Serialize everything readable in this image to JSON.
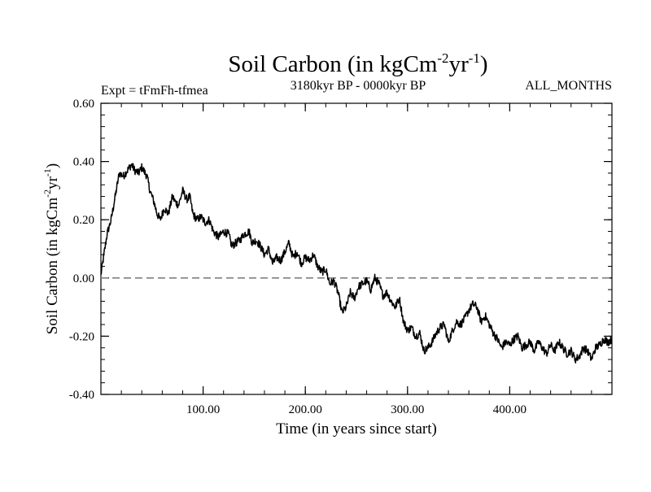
{
  "chart_data": {
    "type": "line",
    "title": "Soil Carbon (in kgCm",
    "title_sup1": "-2",
    "title_mid": "yr",
    "title_sup2": "-1",
    "title_end": ")",
    "subtitle_left": "Expt = tFmFh-tfmea",
    "subtitle_center": "3180kyr BP - 0000kyr BP",
    "subtitle_right": "ALL_MONTHS",
    "xlabel": "Time (in years since start)",
    "ylabel": "Soil Carbon (in kgCm",
    "ylabel_sup1": "-2",
    "ylabel_mid": "yr",
    "ylabel_sup2": "-1",
    "ylabel_end": ")",
    "xlim": [
      0,
      500
    ],
    "ylim": [
      -0.4,
      0.6
    ],
    "xticks": [
      100,
      200,
      300,
      400
    ],
    "xtick_labels": [
      "100.00",
      "200.00",
      "300.00",
      "400.00"
    ],
    "yticks": [
      0.6,
      0.4,
      0.2,
      0.0,
      -0.2,
      -0.4
    ],
    "ytick_labels": [
      "0.60",
      "0.40",
      "0.20",
      "0.00",
      "-0.20",
      "-0.40"
    ],
    "reference_line": {
      "y": 0.0,
      "style": "dashed",
      "color": "#808080"
    },
    "line_color": "#000000",
    "series": [
      {
        "name": "Soil Carbon",
        "x": [
          0,
          3,
          6,
          10,
          15,
          18,
          22,
          26,
          30,
          33,
          37,
          40,
          45,
          48,
          52,
          55,
          58,
          62,
          66,
          70,
          73,
          76,
          80,
          84,
          87,
          90,
          94,
          98,
          102,
          106,
          110,
          115,
          120,
          125,
          128,
          132,
          136,
          140,
          145,
          148,
          152,
          156,
          160,
          164,
          168,
          172,
          176,
          180,
          184,
          188,
          192,
          196,
          200,
          204,
          208,
          212,
          216,
          220,
          224,
          228,
          232,
          236,
          240,
          244,
          248,
          252,
          256,
          260,
          264,
          268,
          272,
          276,
          280,
          284,
          288,
          292,
          296,
          300,
          304,
          308,
          312,
          316,
          320,
          324,
          328,
          332,
          336,
          340,
          344,
          348,
          352,
          356,
          360,
          364,
          368,
          372,
          376,
          380,
          384,
          388,
          392,
          396,
          400,
          404,
          408,
          412,
          416,
          420,
          424,
          428,
          432,
          436,
          440,
          444,
          448,
          452,
          456,
          460,
          464,
          468,
          472,
          476,
          480,
          484,
          488,
          492,
          496,
          500
        ],
        "y": [
          0.01,
          0.08,
          0.15,
          0.2,
          0.3,
          0.36,
          0.35,
          0.37,
          0.39,
          0.37,
          0.36,
          0.38,
          0.35,
          0.3,
          0.26,
          0.22,
          0.2,
          0.24,
          0.22,
          0.28,
          0.26,
          0.25,
          0.3,
          0.27,
          0.28,
          0.22,
          0.2,
          0.21,
          0.19,
          0.2,
          0.16,
          0.14,
          0.16,
          0.15,
          0.11,
          0.12,
          0.13,
          0.15,
          0.16,
          0.12,
          0.13,
          0.11,
          0.08,
          0.1,
          0.05,
          0.07,
          0.06,
          0.09,
          0.12,
          0.07,
          0.09,
          0.05,
          0.07,
          0.06,
          0.08,
          0.04,
          0.02,
          0.03,
          -0.02,
          -0.01,
          -0.05,
          -0.12,
          -0.1,
          -0.05,
          -0.07,
          -0.03,
          -0.02,
          -0.01,
          -0.04,
          0.0,
          -0.02,
          -0.06,
          -0.05,
          -0.08,
          -0.1,
          -0.07,
          -0.15,
          -0.18,
          -0.17,
          -0.2,
          -0.19,
          -0.25,
          -0.24,
          -0.22,
          -0.19,
          -0.17,
          -0.16,
          -0.22,
          -0.18,
          -0.15,
          -0.16,
          -0.14,
          -0.11,
          -0.09,
          -0.1,
          -0.15,
          -0.13,
          -0.16,
          -0.19,
          -0.21,
          -0.24,
          -0.22,
          -0.23,
          -0.21,
          -0.2,
          -0.24,
          -0.23,
          -0.22,
          -0.25,
          -0.22,
          -0.24,
          -0.26,
          -0.23,
          -0.25,
          -0.22,
          -0.24,
          -0.26,
          -0.25,
          -0.28,
          -0.27,
          -0.24,
          -0.25,
          -0.28,
          -0.24,
          -0.23,
          -0.21,
          -0.22,
          -0.21
        ]
      }
    ]
  }
}
